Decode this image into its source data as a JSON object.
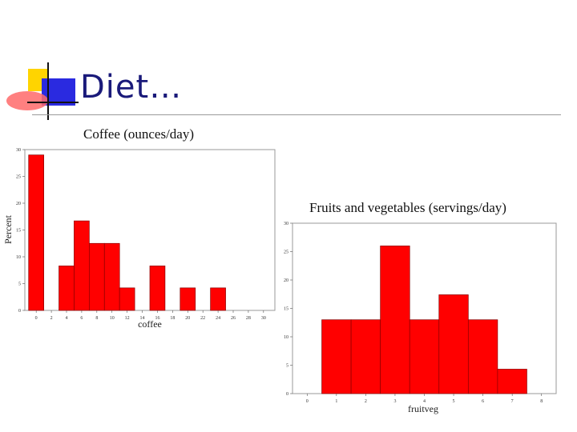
{
  "slide": {
    "title": "Diet…"
  },
  "chart_data": [
    {
      "type": "bar",
      "title": "Coffee (ounces/day)",
      "xlabel": "coffee",
      "ylabel": "Percent",
      "bin_width": 2,
      "x_ticks": [
        0,
        2,
        4,
        6,
        8,
        10,
        12,
        14,
        16,
        18,
        20,
        22,
        24,
        26,
        28,
        30
      ],
      "xlim": [
        -1.5,
        31.5
      ],
      "y_ticks": [
        0,
        5,
        10,
        15,
        20,
        25,
        30
      ],
      "ylim": [
        0,
        30
      ],
      "bin_centers": [
        0,
        4,
        6,
        8,
        10,
        12,
        16,
        20,
        24
      ],
      "values": [
        29,
        8.3,
        16.7,
        12.5,
        12.5,
        4.2,
        8.3,
        4.2,
        4.2
      ],
      "bar_color": "#ff0000",
      "grid": false
    },
    {
      "type": "bar",
      "title": "Fruits and vegetables (servings/day)",
      "xlabel": "fruitveg",
      "ylabel": "",
      "bin_width": 1,
      "x_ticks": [
        0,
        1,
        2,
        3,
        4,
        5,
        6,
        7,
        8
      ],
      "xlim": [
        -0.5,
        8.5
      ],
      "y_ticks": [
        0,
        5,
        10,
        15,
        20,
        25,
        30
      ],
      "ylim": [
        0,
        30
      ],
      "bin_centers": [
        1,
        2,
        3,
        4,
        5,
        6,
        7
      ],
      "values": [
        13,
        13,
        26,
        13,
        17.4,
        13,
        4.3
      ],
      "bar_color": "#ff0000",
      "grid": false
    }
  ]
}
